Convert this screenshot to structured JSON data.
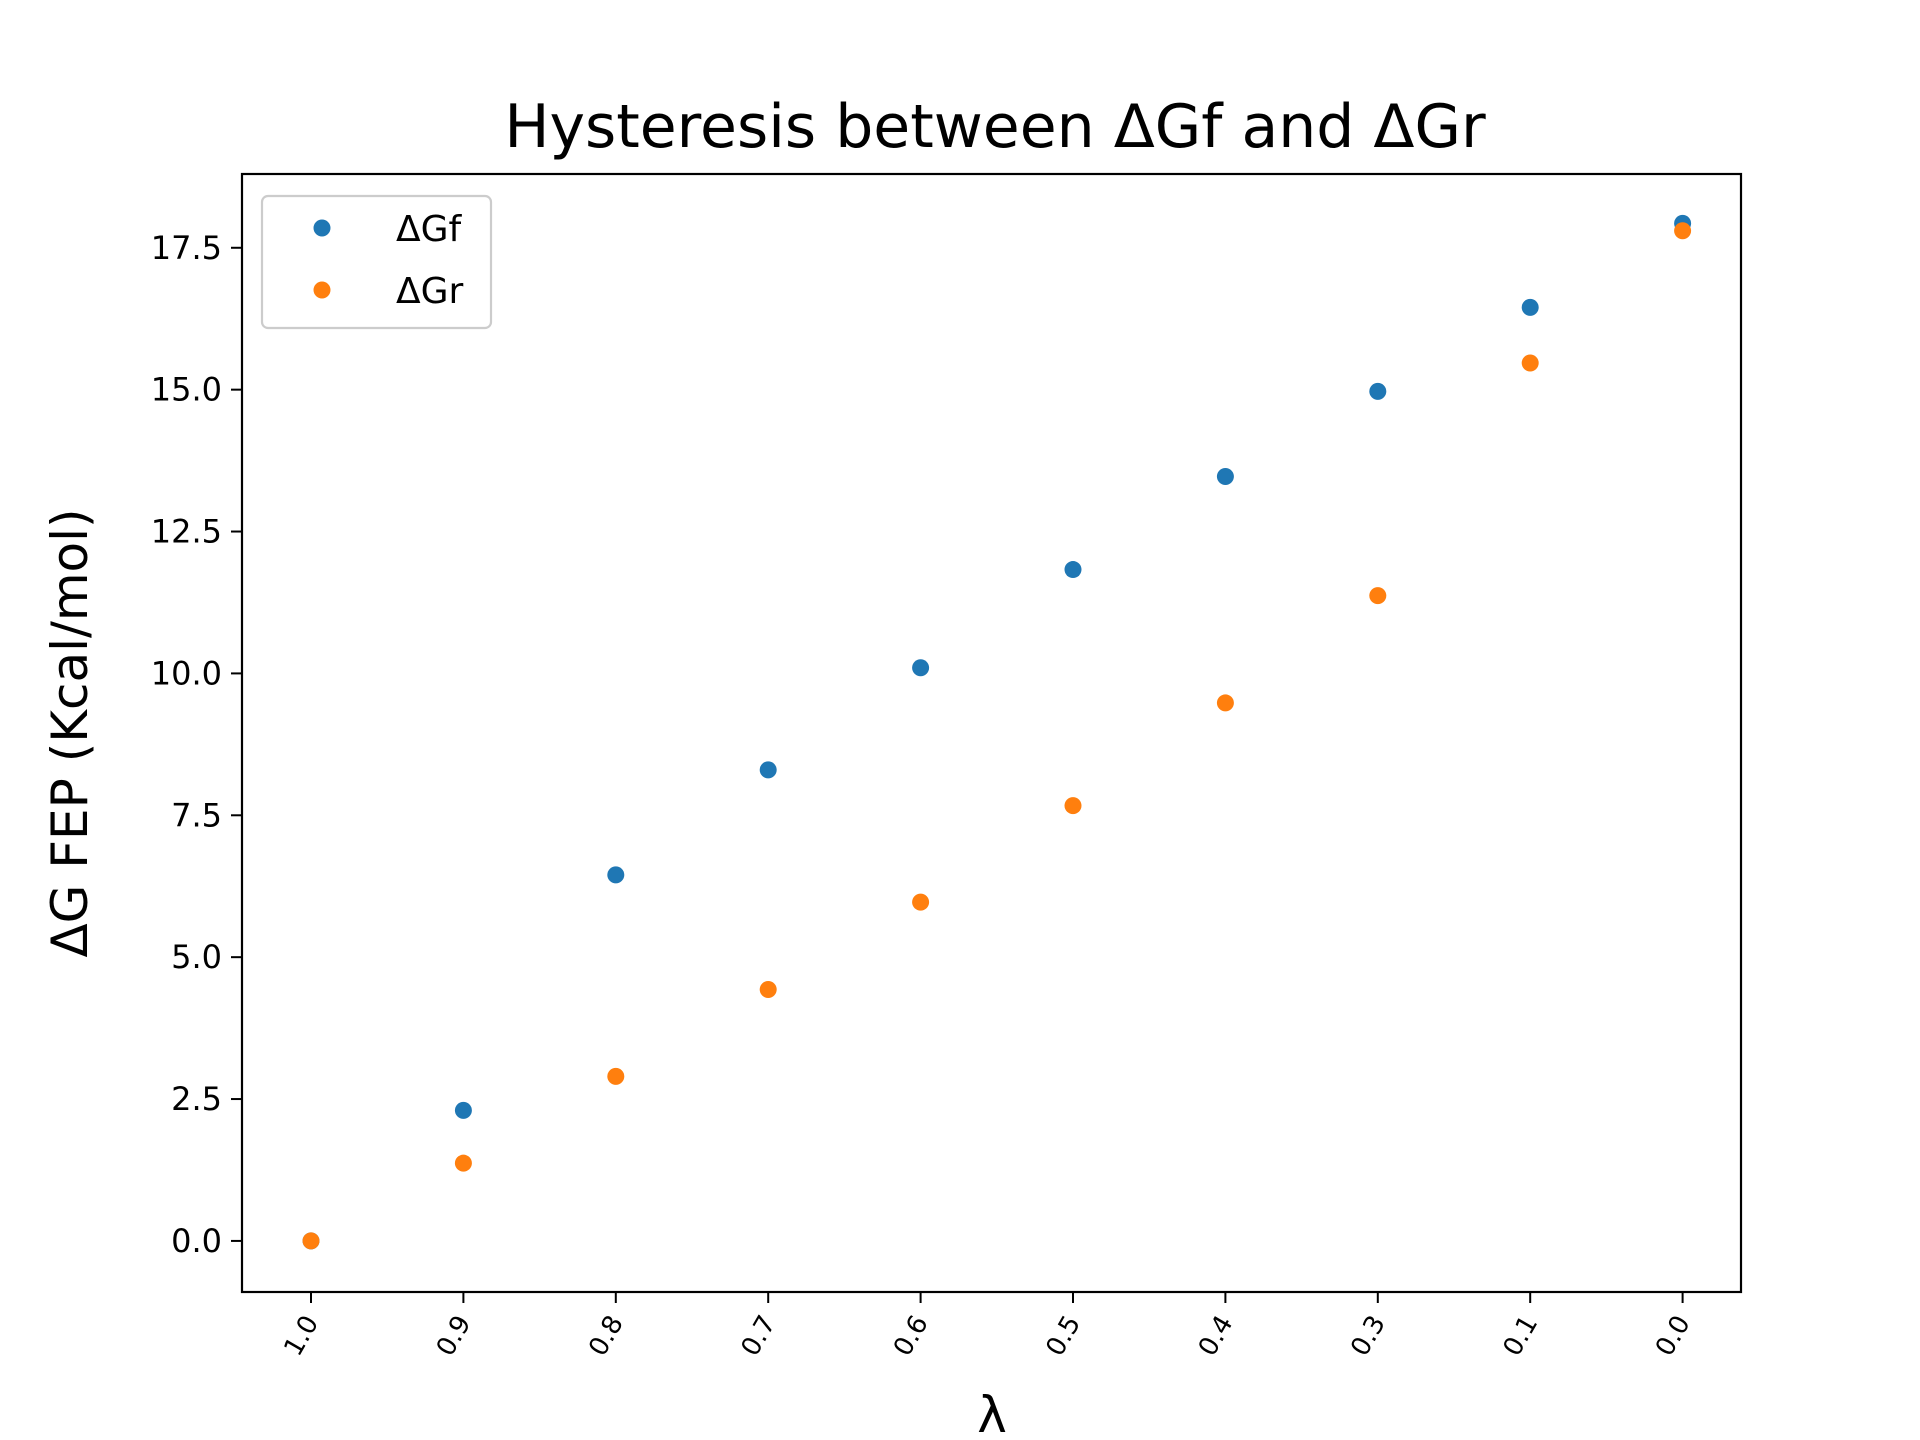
{
  "chart_data": {
    "type": "scatter",
    "title": "Hysteresis between ΔGf and ΔGr",
    "xlabel": "λ",
    "ylabel": "ΔG FEP (Kcal/mol)",
    "categories": [
      "1.0",
      "0.9",
      "0.8",
      "0.7",
      "0.6",
      "0.5",
      "0.4",
      "0.3",
      "0.1",
      "0.0"
    ],
    "ylim": [
      -0.9,
      18.8
    ],
    "yticks": [
      "0.0",
      "2.5",
      "5.0",
      "7.5",
      "10.0",
      "12.5",
      "15.0",
      "17.5"
    ],
    "grid": false,
    "legend_position": "top-left",
    "series": [
      {
        "name": "ΔGf",
        "color": "#1f77b4",
        "values": [
          0.0,
          2.3,
          6.45,
          8.3,
          10.1,
          11.83,
          13.47,
          14.97,
          16.45,
          17.93
        ]
      },
      {
        "name": "ΔGr",
        "color": "#ff7f0e",
        "values": [
          0.0,
          1.37,
          2.9,
          4.43,
          5.97,
          7.67,
          9.48,
          11.37,
          15.47,
          17.8
        ]
      }
    ]
  }
}
